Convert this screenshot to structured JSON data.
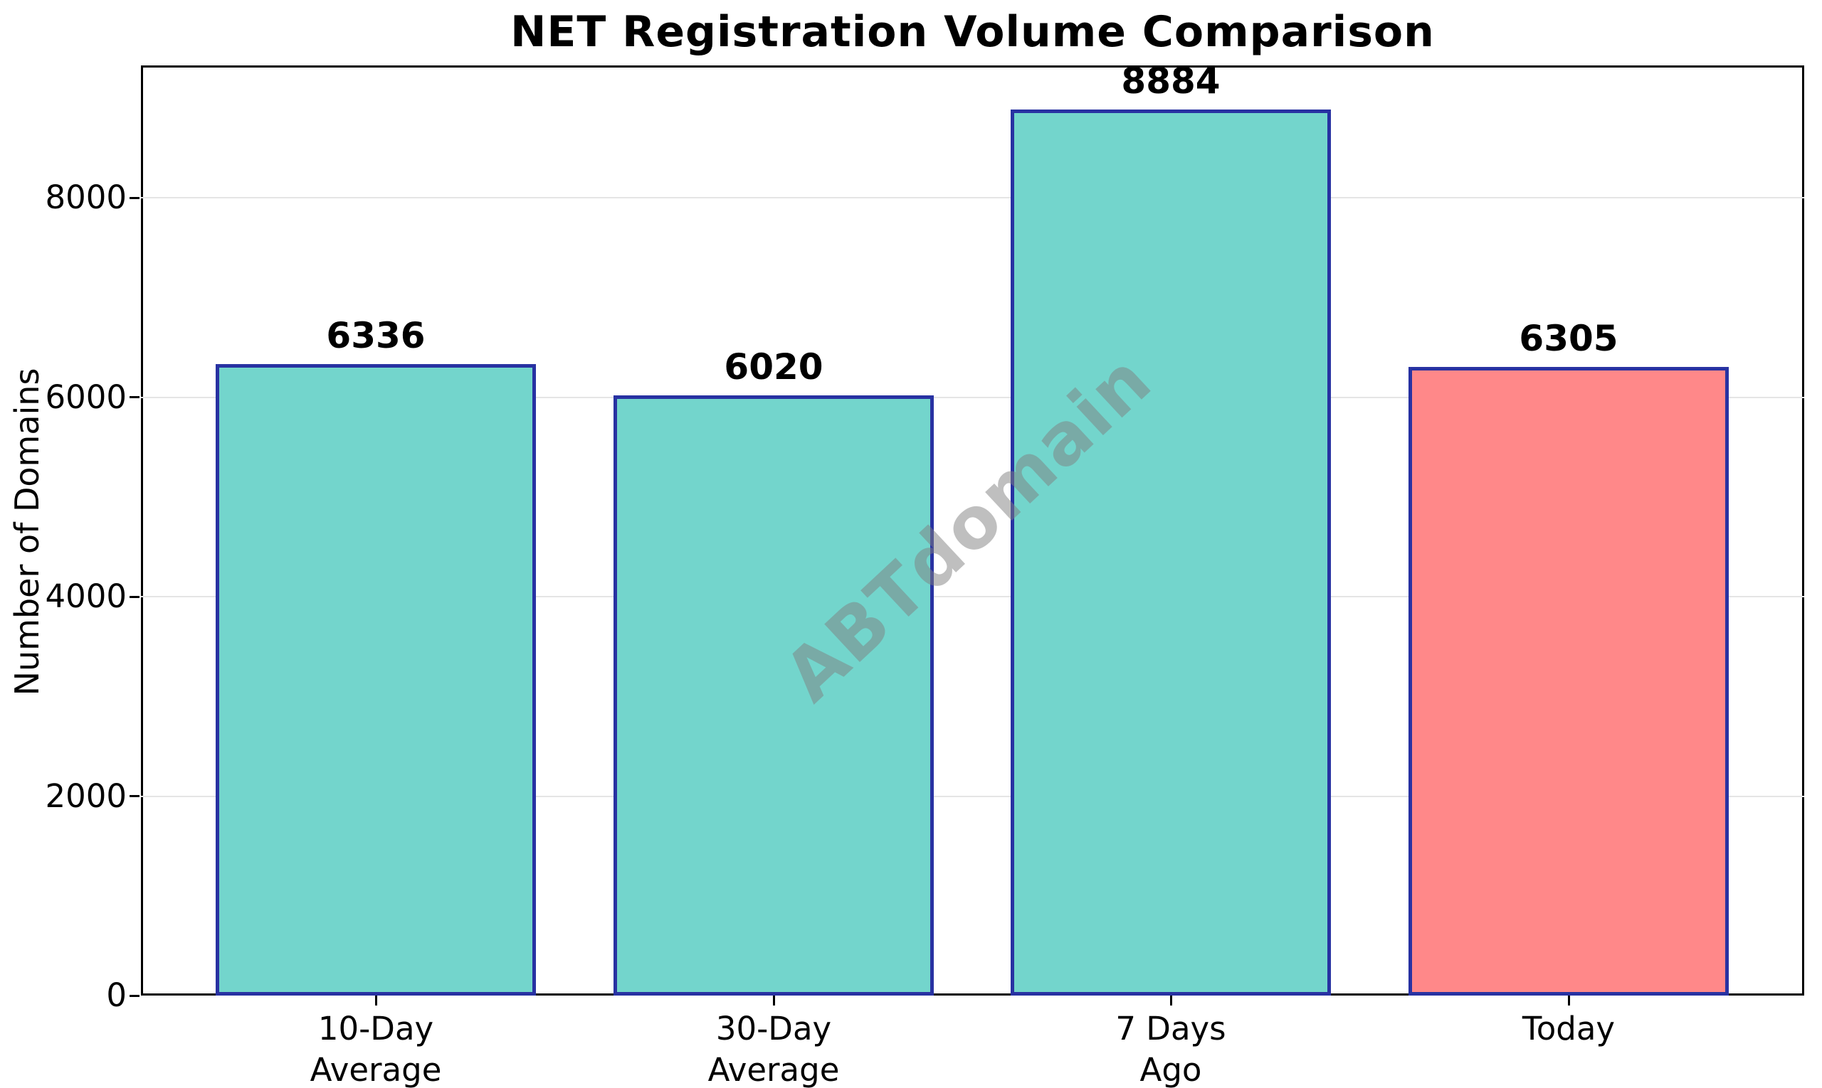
{
  "chart_data": {
    "type": "bar",
    "title": "NET Registration Volume Comparison",
    "ylabel": "Number of Domains",
    "xlabel": "",
    "categories": [
      "10-Day\nAverage",
      "30-Day\nAverage",
      "7 Days\nAgo",
      "Today"
    ],
    "values": [
      6336,
      6020,
      8884,
      6305
    ],
    "value_labels": [
      "6336",
      "6020",
      "8884",
      "6305"
    ],
    "bar_colors": [
      "#73d5cc",
      "#73d5cc",
      "#73d5cc",
      "#ff8889"
    ],
    "bar_edge_color": "#2832a2",
    "yticks": [
      0,
      2000,
      4000,
      6000,
      8000
    ],
    "ytick_labels": [
      "0",
      "2000",
      "4000",
      "6000",
      "8000"
    ],
    "ylim": [
      0,
      9328
    ],
    "grid": "horizontal",
    "gridline_color": "#e5e5e5",
    "legend_position": "none",
    "watermark": "ABTdomain"
  }
}
